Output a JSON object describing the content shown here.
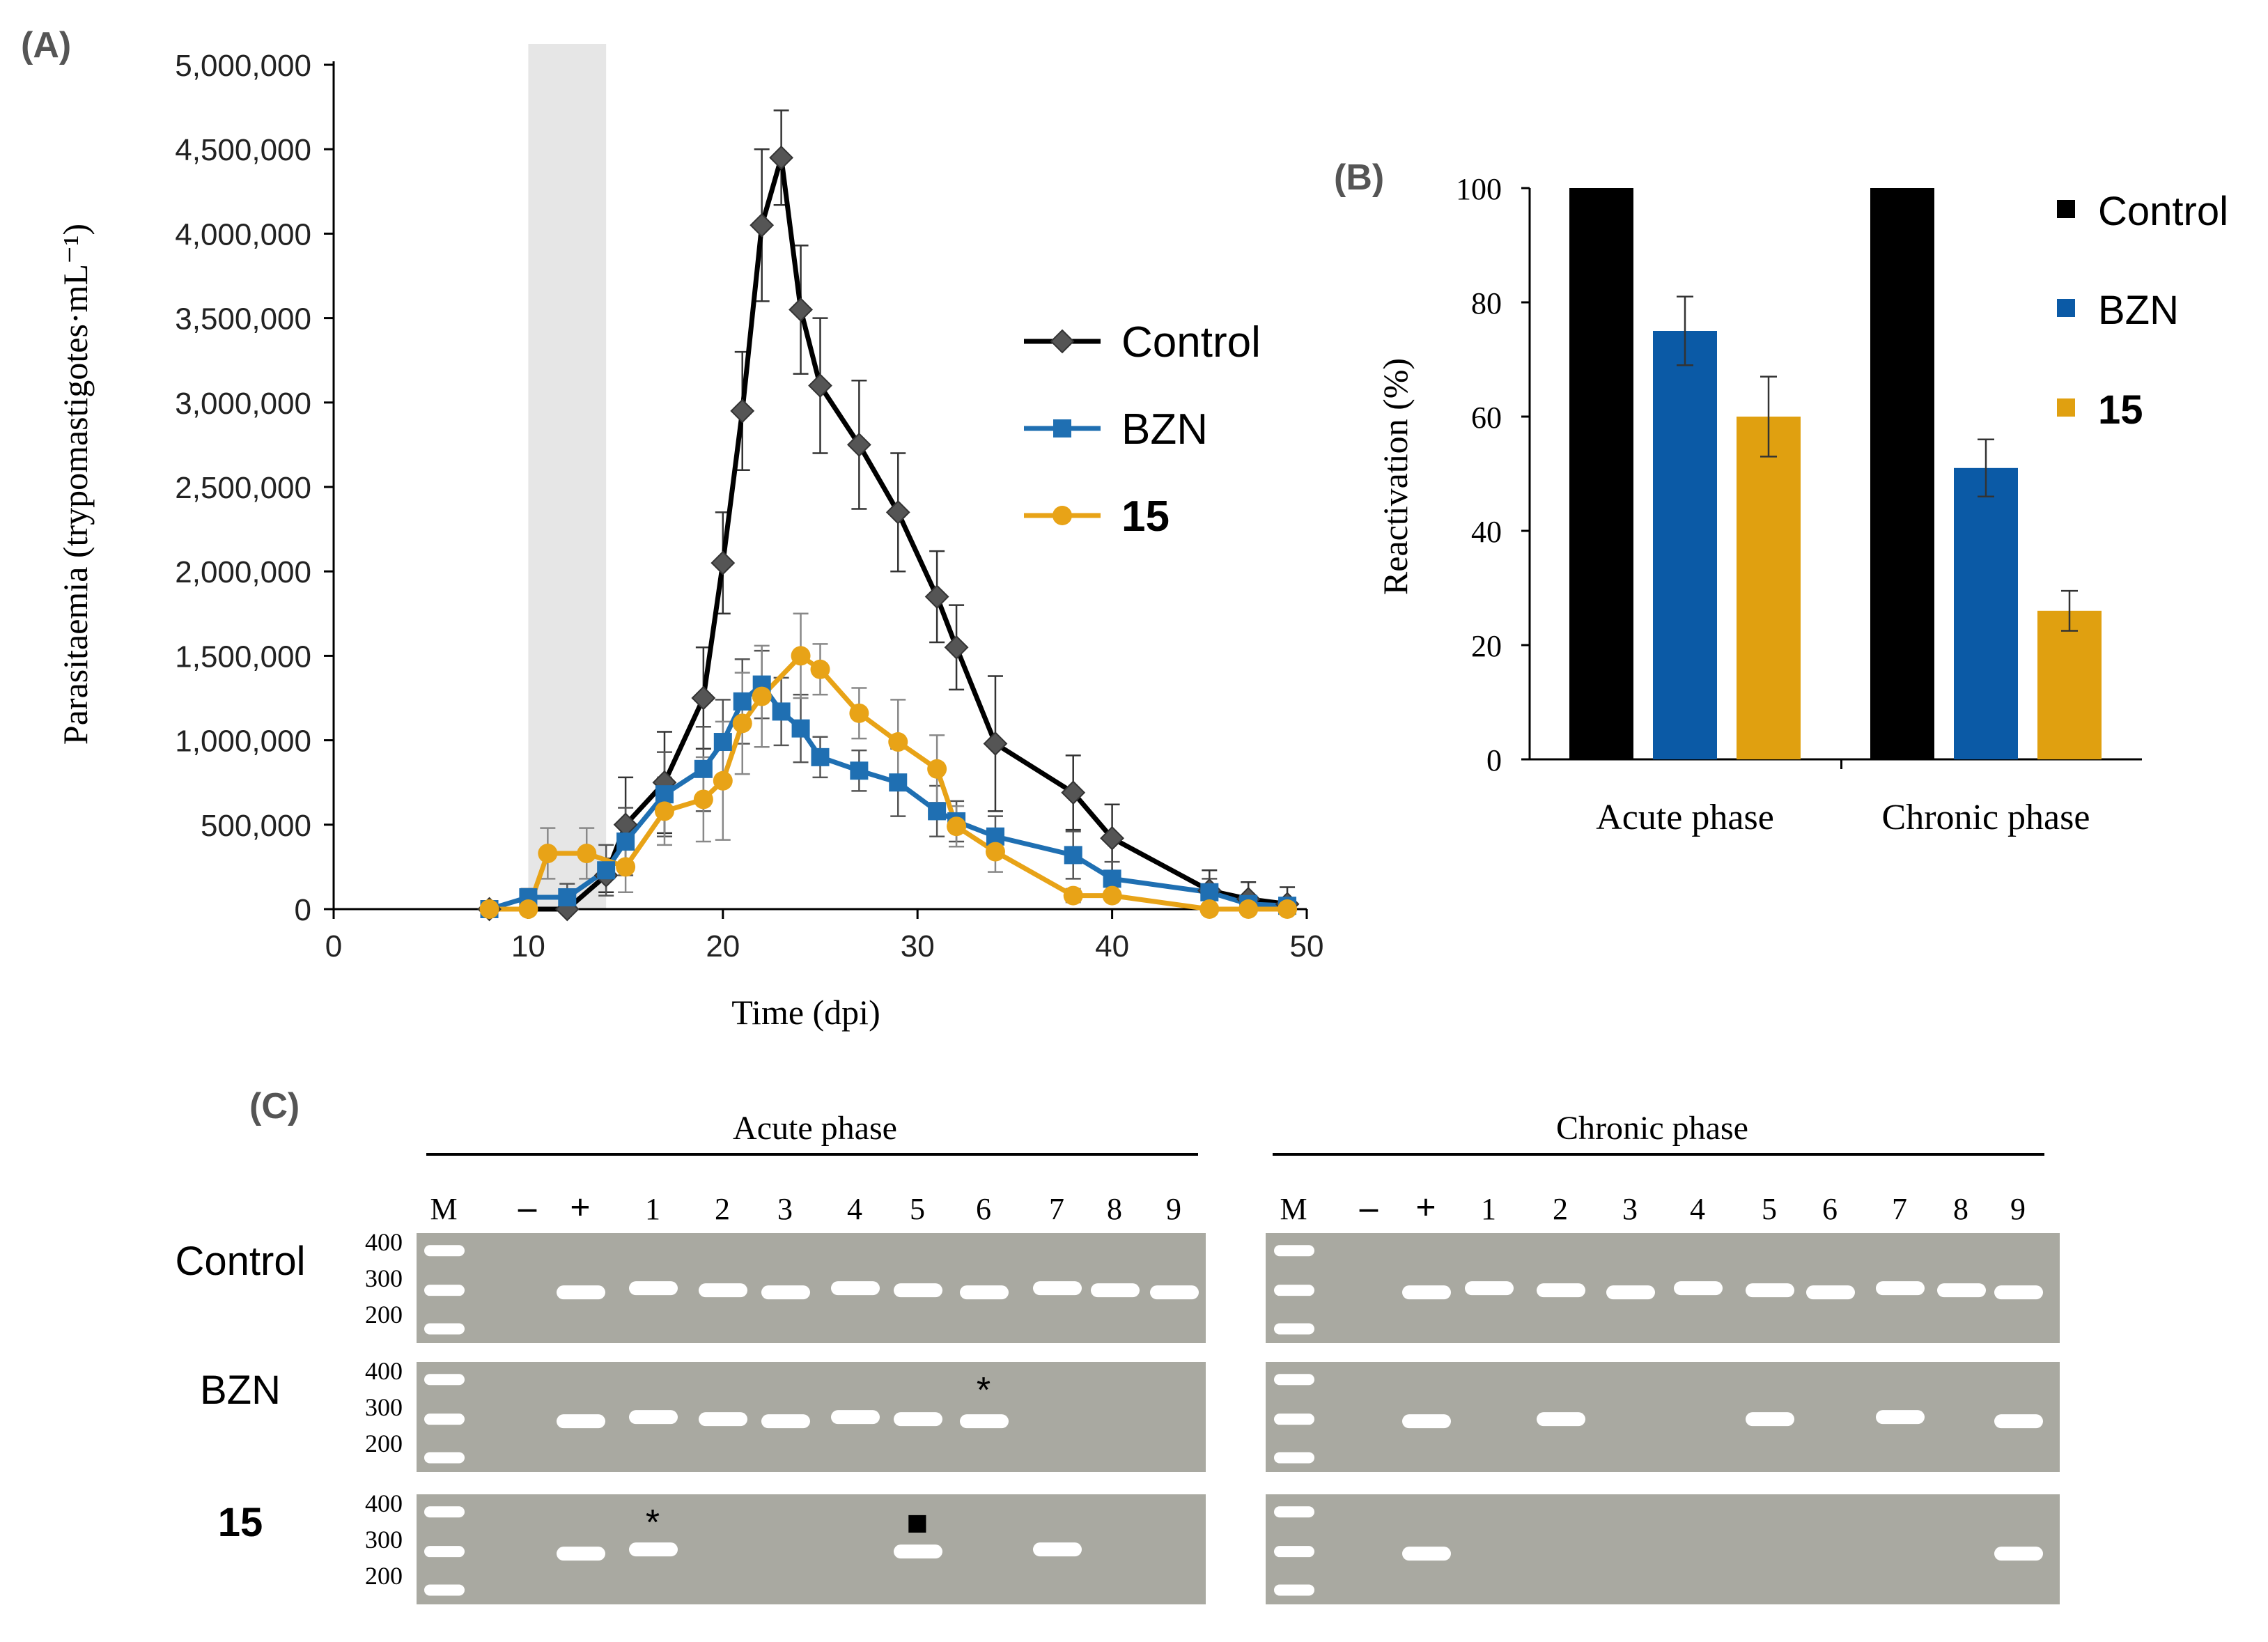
{
  "panel_labels": {
    "a": "(A)",
    "b": "(B)",
    "c": "(C)"
  },
  "colors": {
    "control": "#000000",
    "bzn": "#1f6fb2",
    "c15": "#e8a317",
    "c15_bar": "#e0a010",
    "bzn_bar": "#0b5aa6",
    "shade": "#e6e6e6",
    "gel_bg": "#a9a9a1",
    "band": "#ffffff"
  },
  "chart_data": [
    {
      "type": "line",
      "title": "",
      "xlabel": "Time (dpi)",
      "ylabel": "Parasitaemia (trypomastigotes·mL⁻¹)",
      "xlim": [
        0,
        50
      ],
      "ylim": [
        0,
        5000000
      ],
      "xticks": [
        "0",
        "10",
        "20",
        "30",
        "40",
        "50"
      ],
      "yticks": [
        "0",
        "500,000",
        "1,000,000",
        "1,500,000",
        "2,000,000",
        "2,500,000",
        "3,000,000",
        "3,500,000",
        "4,000,000",
        "4,500,000",
        "5,000,000"
      ],
      "shaded_region": [
        10,
        14
      ],
      "legend": [
        "Control",
        "BZN",
        "15"
      ],
      "series": [
        {
          "name": "Control",
          "marker": "diamond",
          "x": [
            8,
            12,
            14,
            15,
            17,
            19,
            20,
            21,
            22,
            23,
            24,
            25,
            27,
            29,
            31,
            32,
            34,
            38,
            40,
            45,
            47,
            49
          ],
          "y": [
            0,
            0,
            200000,
            500000,
            750000,
            1250000,
            2050000,
            2950000,
            4050000,
            4450000,
            3550000,
            3100000,
            2750000,
            2350000,
            1850000,
            1550000,
            980000,
            690000,
            420000,
            110000,
            60000,
            30000
          ],
          "err": [
            0,
            0,
            100000,
            280000,
            300000,
            300000,
            300000,
            350000,
            450000,
            280000,
            380000,
            400000,
            380000,
            350000,
            270000,
            250000,
            400000,
            220000,
            200000,
            120000,
            100000,
            100000
          ]
        },
        {
          "name": "BZN",
          "marker": "square",
          "x": [
            8,
            10,
            12,
            14,
            15,
            17,
            19,
            20,
            21,
            22,
            23,
            24,
            25,
            27,
            29,
            31,
            32,
            34,
            38,
            40,
            45,
            47,
            49
          ],
          "y": [
            0,
            70000,
            70000,
            230000,
            400000,
            680000,
            830000,
            990000,
            1230000,
            1330000,
            1170000,
            1070000,
            900000,
            820000,
            750000,
            580000,
            520000,
            430000,
            320000,
            180000,
            100000,
            30000,
            20000
          ],
          "err": [
            0,
            50000,
            80000,
            150000,
            200000,
            250000,
            250000,
            250000,
            250000,
            200000,
            200000,
            200000,
            120000,
            120000,
            200000,
            150000,
            120000,
            120000,
            140000,
            100000,
            80000,
            40000,
            30000
          ]
        },
        {
          "name": "15",
          "marker": "circle",
          "x": [
            8,
            10,
            11,
            13,
            15,
            17,
            19,
            20,
            21,
            22,
            24,
            25,
            27,
            29,
            31,
            32,
            34,
            38,
            40,
            45,
            47,
            49
          ],
          "y": [
            0,
            0,
            330000,
            330000,
            250000,
            580000,
            650000,
            760000,
            1100000,
            1260000,
            1500000,
            1420000,
            1160000,
            990000,
            830000,
            490000,
            340000,
            80000,
            80000,
            0,
            0,
            0
          ],
          "err": [
            0,
            0,
            150000,
            150000,
            150000,
            200000,
            250000,
            350000,
            300000,
            300000,
            250000,
            150000,
            150000,
            250000,
            200000,
            120000,
            120000,
            40000,
            30000,
            0,
            0,
            0
          ]
        }
      ]
    },
    {
      "type": "bar",
      "title": "",
      "xlabel": "",
      "ylabel": "Reactivation (%)",
      "ylim": [
        0,
        100
      ],
      "yticks": [
        "0",
        "20",
        "40",
        "60",
        "80",
        "100"
      ],
      "categories": [
        "Acute phase",
        "Chronic phase"
      ],
      "legend": [
        "Control",
        "BZN",
        "15"
      ],
      "series": [
        {
          "name": "Control",
          "values": [
            100,
            100
          ],
          "err": [
            0,
            0
          ]
        },
        {
          "name": "BZN",
          "values": [
            75,
            51
          ],
          "err": [
            6,
            5
          ]
        },
        {
          "name": "15",
          "values": [
            60,
            26
          ],
          "err": [
            7,
            3.5
          ]
        }
      ]
    }
  ],
  "gel": {
    "acute_title": "Acute phase",
    "chronic_title": "Chronic phase",
    "lane_labels": [
      "M",
      "–",
      "+",
      "1",
      "2",
      "3",
      "4",
      "5",
      "6",
      "7",
      "8",
      "9"
    ],
    "size_labels": [
      "400",
      "300",
      "200"
    ],
    "rows": [
      {
        "label": "Control",
        "acute_bands": [
          0,
          0,
          1,
          1,
          1,
          1,
          1,
          1,
          1,
          1,
          1,
          1
        ],
        "chronic_bands": [
          0,
          0,
          1,
          1,
          1,
          1,
          1,
          1,
          1,
          1,
          1,
          1
        ],
        "acute_marks": [],
        "chronic_marks": []
      },
      {
        "label": "BZN",
        "acute_bands": [
          0,
          0,
          1,
          1,
          1,
          1,
          1,
          1,
          1,
          0,
          0,
          0
        ],
        "chronic_bands": [
          0,
          0,
          1,
          0,
          1,
          0,
          0,
          1,
          0,
          1,
          0,
          1
        ],
        "acute_marks": [
          {
            "lane": 8,
            "symbol": "*"
          }
        ],
        "chronic_marks": []
      },
      {
        "label": "15",
        "acute_bands": [
          0,
          0,
          1,
          1,
          0,
          0,
          0,
          1,
          0,
          1,
          0,
          0
        ],
        "chronic_bands": [
          0,
          0,
          1,
          0,
          0,
          0,
          0,
          0,
          0,
          0,
          0,
          1
        ],
        "acute_marks": [
          {
            "lane": 3,
            "symbol": "*"
          },
          {
            "lane": 7,
            "symbol": "■"
          }
        ],
        "chronic_marks": []
      }
    ]
  }
}
